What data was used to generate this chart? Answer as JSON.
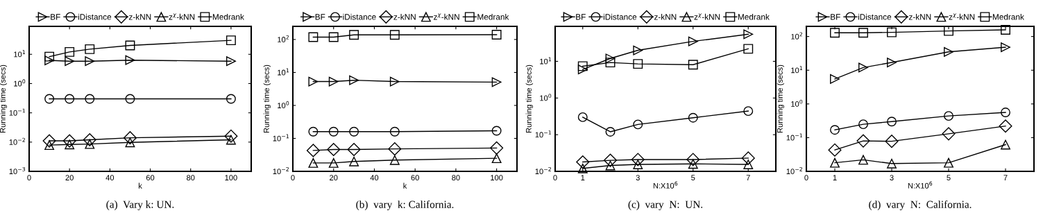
{
  "chart_data": [
    {
      "type": "line",
      "xlabel": "k",
      "ylabel": "Running time (secs)",
      "log": "y",
      "grid": false,
      "legend": "top",
      "line_style": "solid",
      "x": [
        10,
        20,
        30,
        50,
        100
      ],
      "xlim": [
        0,
        110
      ],
      "xticks": [
        0,
        20,
        40,
        60,
        80,
        100
      ],
      "ylim": [
        0.001,
        90
      ],
      "yticks": [
        {
          "value": 0.001,
          "label": "10$^{−3}$"
        },
        {
          "value": 0.01,
          "label": "10$^{−2}$"
        },
        {
          "value": 0.1,
          "label": "10$^{−1}$"
        },
        {
          "value": 1,
          "label": "10$^{0}$"
        },
        {
          "value": 10,
          "label": "10$^{1}$"
        }
      ],
      "annotations": [
        "(a)  Vary k: UN."
      ],
      "series": [
        {
          "name": "BF",
          "color": "#000000",
          "marker": "triangle_right",
          "values": [
            6.2,
            5.8,
            5.8,
            6.3,
            5.8
          ]
        },
        {
          "name": "iDistance",
          "color": "#000000",
          "marker": "circle",
          "values": [
            0.3,
            0.3,
            0.3,
            0.3,
            0.3
          ]
        },
        {
          "name": "z-kNN",
          "color": "#000000",
          "marker": "diamond",
          "values": [
            0.011,
            0.011,
            0.012,
            0.014,
            0.016
          ]
        },
        {
          "name": "z$^{χ}$-kNN",
          "color": "#000000",
          "marker": "triangle",
          "values": [
            0.0079,
            0.0083,
            0.0086,
            0.0098,
            0.012
          ]
        },
        {
          "name": "Medrank",
          "color": "#000000",
          "marker": "square",
          "values": [
            8.3,
            12,
            15,
            20,
            30
          ]
        }
      ]
    },
    {
      "type": "line",
      "xlabel": "k",
      "ylabel": "Running time (secs)",
      "log": "y",
      "grid": false,
      "legend": "top",
      "line_style": "solid",
      "x": [
        10,
        20,
        30,
        50,
        100
      ],
      "xlim": [
        0,
        110
      ],
      "xticks": [
        0,
        20,
        40,
        60,
        80,
        100
      ],
      "ylim": [
        0.01,
        250
      ],
      "yticks": [
        {
          "value": 0.01,
          "label": "10$^{−2}$"
        },
        {
          "value": 0.1,
          "label": "10$^{−1}$"
        },
        {
          "value": 1,
          "label": "10$^{0}$"
        },
        {
          "value": 10,
          "label": "10$^{1}$"
        },
        {
          "value": 100,
          "label": "10$^{2}$"
        }
      ],
      "annotations": [
        "(b)  vary  k: California."
      ],
      "series": [
        {
          "name": "BF",
          "color": "#000000",
          "marker": "triangle_right",
          "values": [
            5.3,
            5.3,
            5.8,
            5.3,
            5.1
          ]
        },
        {
          "name": "iDistance",
          "color": "#000000",
          "marker": "circle",
          "values": [
            0.16,
            0.16,
            0.16,
            0.16,
            0.17
          ]
        },
        {
          "name": "z-kNN",
          "color": "#000000",
          "marker": "diamond",
          "values": [
            0.043,
            0.046,
            0.046,
            0.048,
            0.051
          ]
        },
        {
          "name": "z$^{χ}$-kNN",
          "color": "#000000",
          "marker": "triangle",
          "values": [
            0.018,
            0.018,
            0.02,
            0.022,
            0.025
          ]
        },
        {
          "name": "Medrank",
          "color": "#000000",
          "marker": "square",
          "values": [
            118,
            118,
            138,
            138,
            140
          ]
        }
      ]
    },
    {
      "type": "line",
      "xlabel": "N:X10$^{6}$",
      "ylabel": "Running time (secs)",
      "log": "y",
      "grid": false,
      "legend": "top",
      "line_style": "solid",
      "x": [
        1,
        2,
        3,
        5,
        7
      ],
      "xlim": [
        0,
        8
      ],
      "xticks": [
        0,
        1,
        3,
        5,
        7
      ],
      "ylim": [
        0.01,
        90
      ],
      "yticks": [
        {
          "value": 0.01,
          "label": "10$^{−2}$"
        },
        {
          "value": 0.1,
          "label": "10$^{−1}$"
        },
        {
          "value": 1,
          "label": "10$^{0}$"
        },
        {
          "value": 10,
          "label": "10$^{1}$"
        }
      ],
      "annotations": [
        "(c)  vary  N:  UN."
      ],
      "series": [
        {
          "name": "BF",
          "color": "#000000",
          "marker": "triangle_right",
          "values": [
            6,
            12,
            20,
            35,
            55
          ]
        },
        {
          "name": "iDistance",
          "color": "#000000",
          "marker": "circle",
          "values": [
            0.3,
            0.12,
            0.19,
            0.29,
            0.44
          ]
        },
        {
          "name": "z-kNN",
          "color": "#000000",
          "marker": "diamond",
          "values": [
            0.018,
            0.02,
            0.021,
            0.021,
            0.023
          ]
        },
        {
          "name": "z$^{χ}$-kNN",
          "color": "#000000",
          "marker": "triangle",
          "values": [
            0.012,
            0.0145,
            0.0155,
            0.016,
            0.0155
          ]
        },
        {
          "name": "Medrank",
          "color": "#000000",
          "marker": "square",
          "values": [
            7.4,
            9.3,
            8.5,
            8.1,
            22
          ]
        }
      ]
    },
    {
      "type": "line",
      "xlabel": "N:X10$^{6}$",
      "ylabel": "Running time (secs)",
      "log": "y",
      "grid": false,
      "legend": "top",
      "line_style": "solid",
      "x": [
        1,
        2,
        3,
        5,
        7
      ],
      "xlim": [
        0,
        8
      ],
      "xticks": [
        0,
        1,
        3,
        5,
        7
      ],
      "ylim": [
        0.01,
        200
      ],
      "yticks": [
        {
          "value": 0.01,
          "label": "10$^{−2}$"
        },
        {
          "value": 0.1,
          "label": "10$^{−1}$"
        },
        {
          "value": 1,
          "label": "10$^{0}$"
        },
        {
          "value": 10,
          "label": "10$^{1}$"
        },
        {
          "value": 100,
          "label": "10$^{2}$"
        }
      ],
      "annotations": [
        "(d)  vary  N:  California."
      ],
      "series": [
        {
          "name": "BF",
          "color": "#000000",
          "marker": "triangle_right",
          "values": [
            5.5,
            12,
            17,
            35,
            48
          ]
        },
        {
          "name": "iDistance",
          "color": "#000000",
          "marker": "circle",
          "values": [
            0.17,
            0.25,
            0.3,
            0.44,
            0.56
          ]
        },
        {
          "name": "z-kNN",
          "color": "#000000",
          "marker": "diamond",
          "values": [
            0.043,
            0.08,
            0.078,
            0.13,
            0.22
          ]
        },
        {
          "name": "z$^{χ}$-kNN",
          "color": "#000000",
          "marker": "triangle",
          "values": [
            0.018,
            0.022,
            0.017,
            0.018,
            0.062
          ]
        },
        {
          "name": "Medrank",
          "color": "#000000",
          "marker": "square",
          "values": [
            129,
            129,
            133,
            146,
            158
          ]
        }
      ]
    }
  ]
}
